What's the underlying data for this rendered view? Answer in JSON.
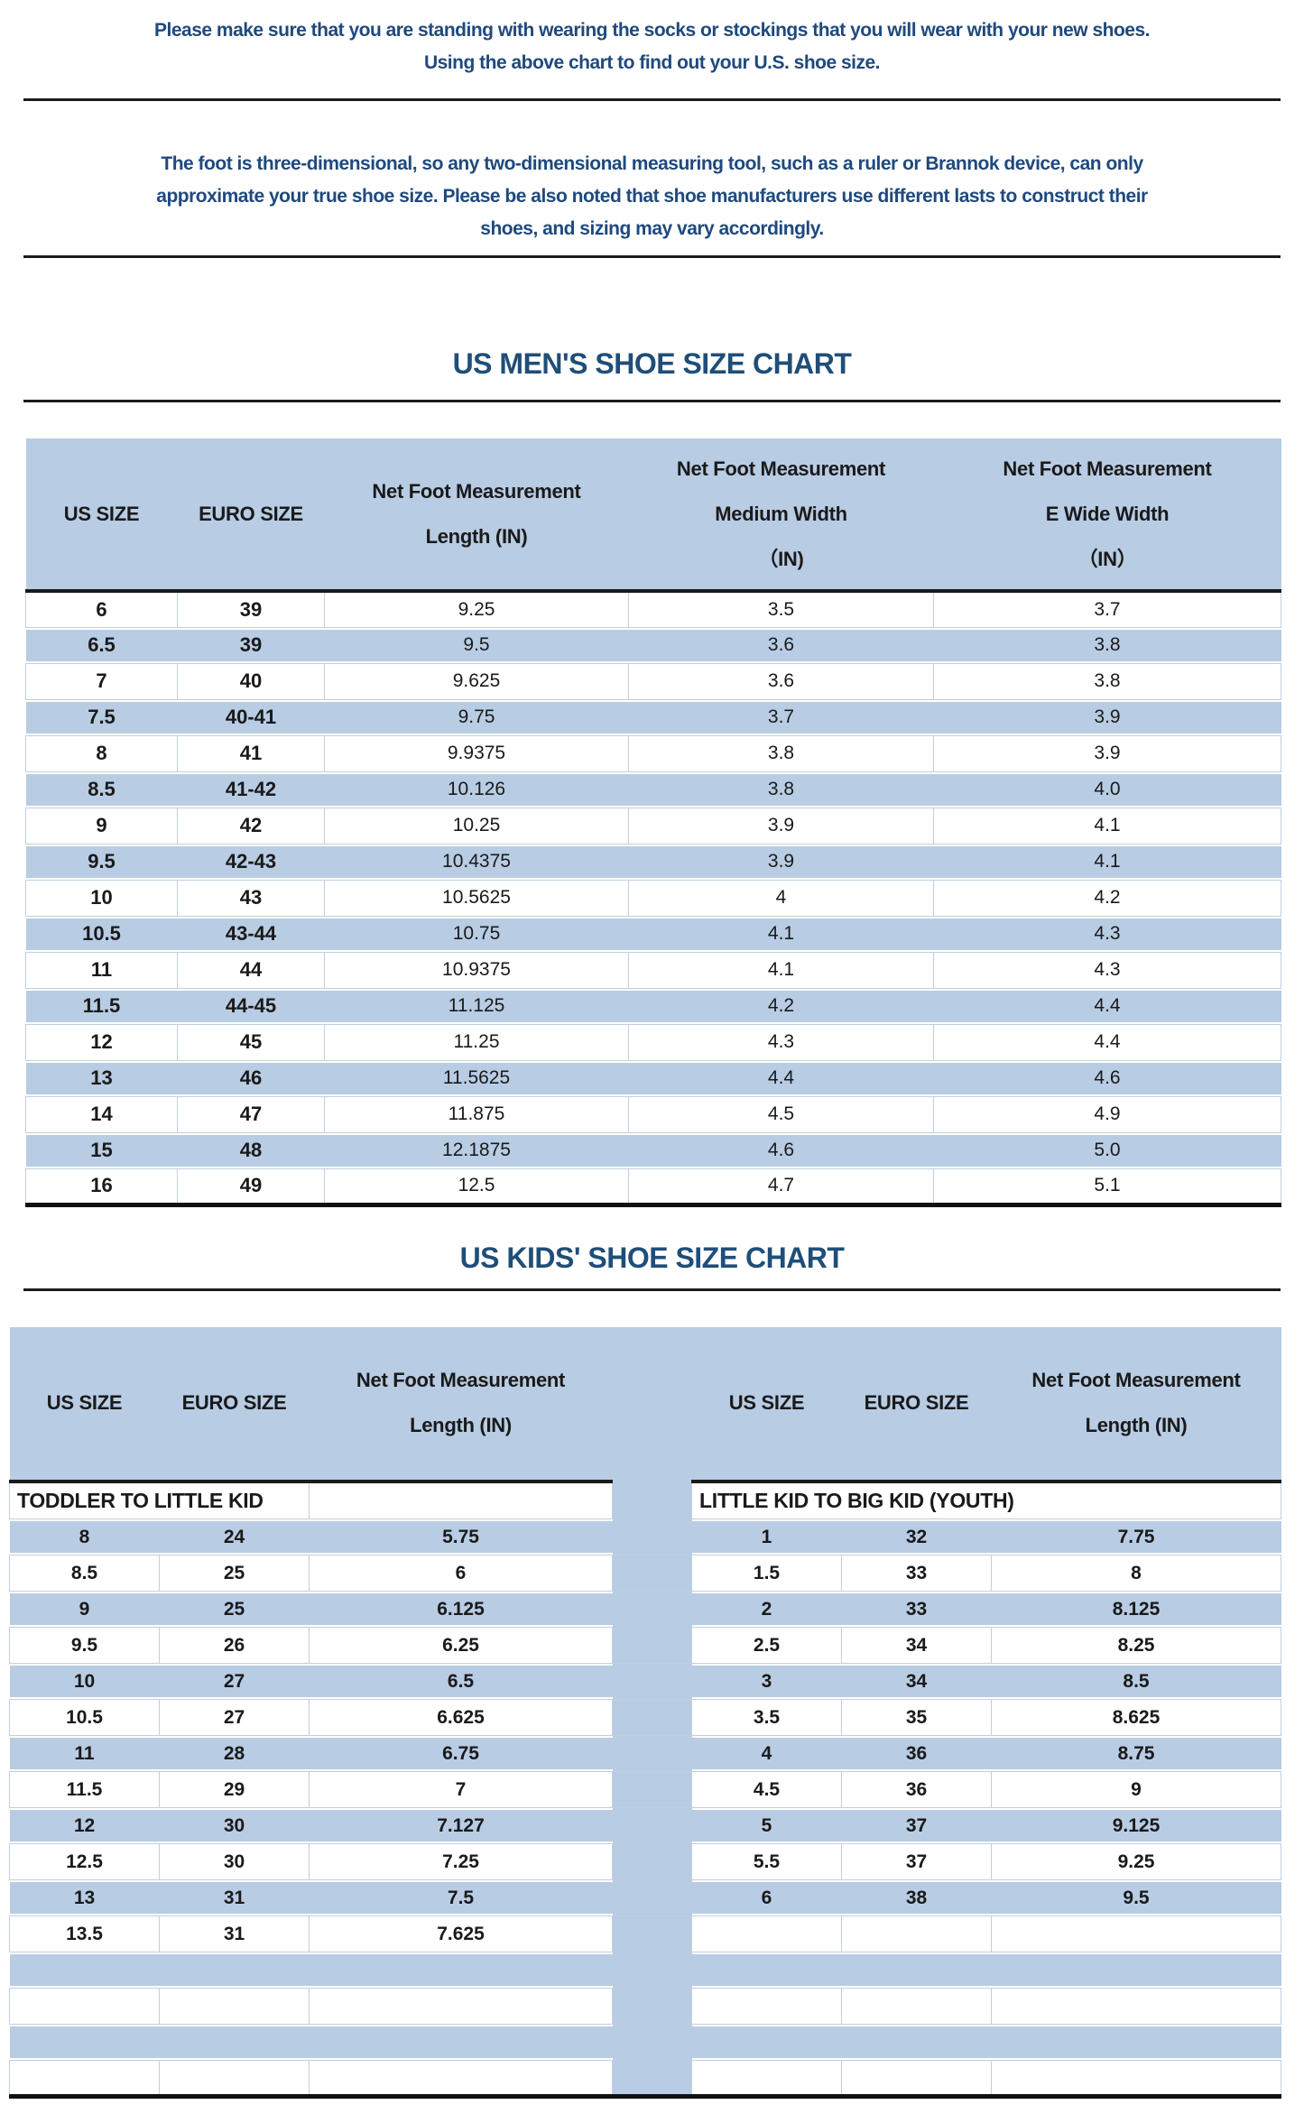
{
  "intro_note": "Please make sure that you are standing with wearing the socks or stockings that you will wear with your new shoes.\nUsing the above chart to find out your U.S. shoe size.",
  "disclaimer_note": "The foot is three-dimensional, so any two-dimensional measuring tool, such as a ruler or Brannok device, can only\napproximate your true shoe size. Please be also noted that shoe manufacturers use different lasts to construct their\nshoes, and sizing may vary accordingly.",
  "colors": {
    "band_blue": "#b8cce4",
    "note_navy": "#1f497d",
    "title_blue": "#1f4e79",
    "rule_black": "#1c1c1c",
    "cell_border": "#c3cedd"
  },
  "mens_chart": {
    "title": "US MEN'S SHOE SIZE CHART",
    "headers": [
      "US SIZE",
      "EURO SIZE",
      "Net Foot Measurement\nLength (IN)",
      "Net Foot Measurement\nMedium Width\n（IN)",
      "Net Foot Measurement\nE Wide Width\n（IN）"
    ],
    "rows": [
      [
        "6",
        "39",
        "9.25",
        "3.5",
        "3.7"
      ],
      [
        "6.5",
        "39",
        "9.5",
        "3.6",
        "3.8"
      ],
      [
        "7",
        "40",
        "9.625",
        "3.6",
        "3.8"
      ],
      [
        "7.5",
        "40-41",
        "9.75",
        "3.7",
        "3.9"
      ],
      [
        "8",
        "41",
        "9.9375",
        "3.8",
        "3.9"
      ],
      [
        "8.5",
        "41-42",
        "10.126",
        "3.8",
        "4.0"
      ],
      [
        "9",
        "42",
        "10.25",
        "3.9",
        "4.1"
      ],
      [
        "9.5",
        "42-43",
        "10.4375",
        "3.9",
        "4.1"
      ],
      [
        "10",
        "43",
        "10.5625",
        "4",
        "4.2"
      ],
      [
        "10.5",
        "43-44",
        "10.75",
        "4.1",
        "4.3"
      ],
      [
        "11",
        "44",
        "10.9375",
        "4.1",
        "4.3"
      ],
      [
        "11.5",
        "44-45",
        "11.125",
        "4.2",
        "4.4"
      ],
      [
        "12",
        "45",
        "11.25",
        "4.3",
        "4.4"
      ],
      [
        "13",
        "46",
        "11.5625",
        "4.4",
        "4.6"
      ],
      [
        "14",
        "47",
        "11.875",
        "4.5",
        "4.9"
      ],
      [
        "15",
        "48",
        "12.1875",
        "4.6",
        "5.0"
      ],
      [
        "16",
        "49",
        "12.5",
        "4.7",
        "5.1"
      ]
    ]
  },
  "kids_chart": {
    "title": "US KIDS' SHOE SIZE CHART",
    "headers": [
      "US SIZE",
      "EURO SIZE",
      "Net Foot Measurement\nLength (IN)",
      "",
      "US SIZE",
      "EURO SIZE",
      "Net Foot Measurement\nLength (IN)"
    ],
    "group_labels": {
      "left": "TODDLER TO LITTLE KID",
      "right": "LITTLE KID TO BIG KID (YOUTH)"
    },
    "rows": [
      [
        "8",
        "24",
        "5.75",
        "",
        "1",
        "32",
        "7.75"
      ],
      [
        "8.5",
        "25",
        "6",
        "",
        "1.5",
        "33",
        "8"
      ],
      [
        "9",
        "25",
        "6.125",
        "",
        "2",
        "33",
        "8.125"
      ],
      [
        "9.5",
        "26",
        "6.25",
        "",
        "2.5",
        "34",
        "8.25"
      ],
      [
        "10",
        "27",
        "6.5",
        "",
        "3",
        "34",
        "8.5"
      ],
      [
        "10.5",
        "27",
        "6.625",
        "",
        "3.5",
        "35",
        "8.625"
      ],
      [
        "11",
        "28",
        "6.75",
        "",
        "4",
        "36",
        "8.75"
      ],
      [
        "11.5",
        "29",
        "7",
        "",
        "4.5",
        "36",
        "9"
      ],
      [
        "12",
        "30",
        "7.127",
        "",
        "5",
        "37",
        "9.125"
      ],
      [
        "12.5",
        "30",
        "7.25",
        "",
        "5.5",
        "37",
        "9.25"
      ],
      [
        "13",
        "31",
        "7.5",
        "",
        "6",
        "38",
        "9.5"
      ],
      [
        "13.5",
        "31",
        "7.625",
        "",
        "",
        "",
        ""
      ],
      [
        "",
        "",
        "",
        "",
        "",
        "",
        ""
      ],
      [
        "",
        "",
        "",
        "",
        "",
        "",
        ""
      ],
      [
        "",
        "",
        "",
        "",
        "",
        "",
        ""
      ],
      [
        "",
        "",
        "",
        "",
        "",
        "",
        ""
      ]
    ]
  }
}
